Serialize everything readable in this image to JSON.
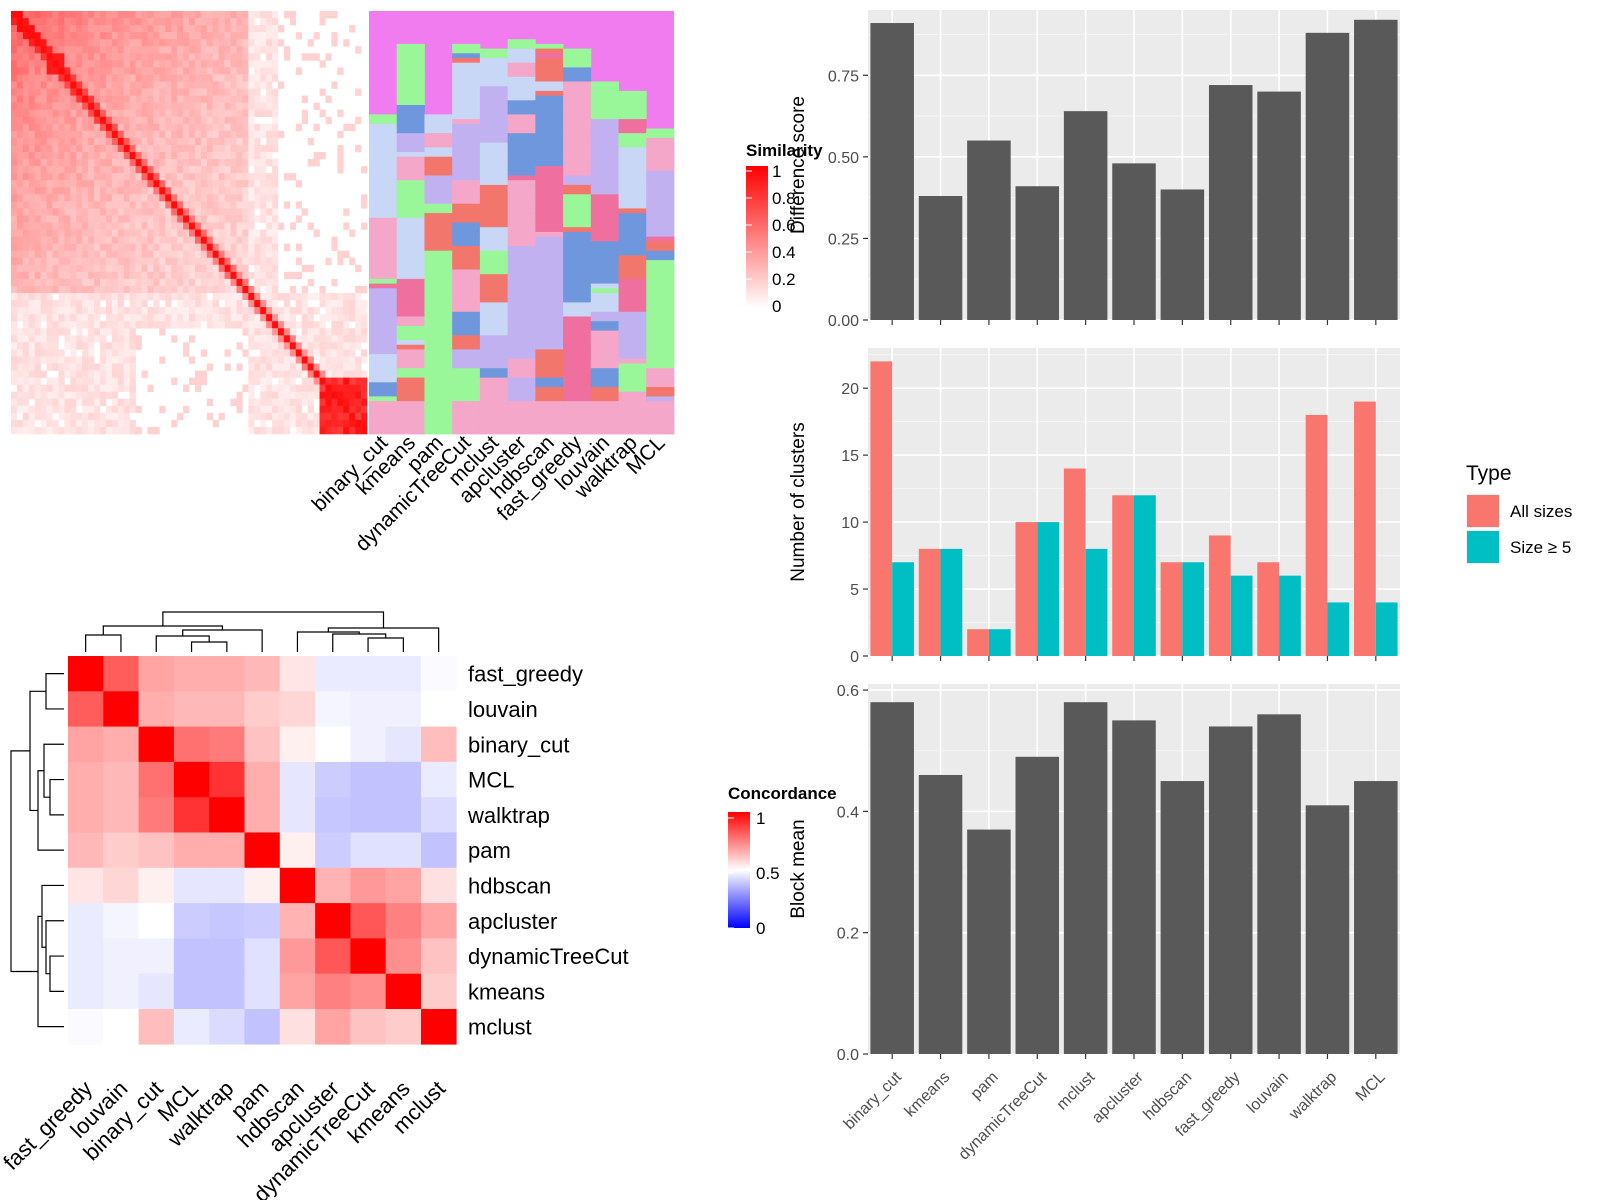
{
  "methods": [
    "binary_cut",
    "kmeans",
    "pam",
    "dynamicTreeCut",
    "mclust",
    "apcluster",
    "hdbscan",
    "fast_greedy",
    "louvain",
    "walktrap",
    "MCL"
  ],
  "colors": {
    "bar": "#595959",
    "panel_bg": "#ebebeb",
    "all_sizes": "#f8766d",
    "size_ge_5": "#00bfc4",
    "sim_high": "#ff0000",
    "conc_high": "#ff0000",
    "conc_mid": "#ffffff",
    "conc_low": "#0000ff",
    "cluster_palette": [
      "#f07cf0",
      "#99f799",
      "#6f97dd",
      "#f4a7c8",
      "#c2b1f0",
      "#ef6f9f",
      "#c7d7f5",
      "#f3766d"
    ]
  },
  "similarity_heatmap": {
    "legend_title": "Similarity",
    "legend_ticks": [
      "1",
      "0.8",
      "0.6",
      "0.4",
      "0.2",
      "0"
    ]
  },
  "membership_heatmap": {
    "column_labels": [
      "binary_cut",
      "kmeans",
      "pam",
      "dynamicTreeCut",
      "mclust",
      "apcluster",
      "hdbscan",
      "fast_greedy",
      "louvain",
      "walktrap",
      "MCL"
    ]
  },
  "concordance_heatmap": {
    "legend_title": "Concordance",
    "legend_ticks": [
      "1",
      "0.5",
      "0"
    ],
    "order": [
      "fast_greedy",
      "louvain",
      "binary_cut",
      "MCL",
      "walktrap",
      "pam",
      "hdbscan",
      "apcluster",
      "dynamicTreeCut",
      "kmeans",
      "mclust"
    ],
    "matrix": [
      [
        1.0,
        0.82,
        0.68,
        0.66,
        0.66,
        0.64,
        0.55,
        0.46,
        0.46,
        0.46,
        0.49
      ],
      [
        0.82,
        1.0,
        0.66,
        0.64,
        0.64,
        0.6,
        0.58,
        0.48,
        0.47,
        0.47,
        0.5
      ],
      [
        0.68,
        0.66,
        1.0,
        0.78,
        0.76,
        0.62,
        0.53,
        0.5,
        0.47,
        0.45,
        0.63
      ],
      [
        0.66,
        0.64,
        0.78,
        1.0,
        0.9,
        0.66,
        0.45,
        0.4,
        0.38,
        0.38,
        0.46
      ],
      [
        0.66,
        0.64,
        0.76,
        0.9,
        1.0,
        0.66,
        0.45,
        0.39,
        0.38,
        0.38,
        0.43
      ],
      [
        0.64,
        0.6,
        0.62,
        0.66,
        0.66,
        1.0,
        0.53,
        0.4,
        0.44,
        0.44,
        0.38
      ],
      [
        0.55,
        0.58,
        0.53,
        0.45,
        0.45,
        0.53,
        1.0,
        0.65,
        0.7,
        0.68,
        0.56
      ],
      [
        0.46,
        0.48,
        0.5,
        0.4,
        0.39,
        0.4,
        0.65,
        1.0,
        0.83,
        0.75,
        0.68
      ],
      [
        0.46,
        0.47,
        0.47,
        0.38,
        0.38,
        0.44,
        0.7,
        0.83,
        1.0,
        0.72,
        0.62
      ],
      [
        0.46,
        0.47,
        0.45,
        0.38,
        0.38,
        0.44,
        0.68,
        0.75,
        0.72,
        1.0,
        0.6
      ],
      [
        0.49,
        0.5,
        0.63,
        0.46,
        0.43,
        0.38,
        0.56,
        0.68,
        0.62,
        0.6,
        1.0
      ]
    ]
  },
  "chart_data": [
    {
      "type": "bar",
      "categories": [
        "binary_cut",
        "kmeans",
        "pam",
        "dynamicTreeCut",
        "mclust",
        "apcluster",
        "hdbscan",
        "fast_greedy",
        "louvain",
        "walktrap",
        "MCL"
      ],
      "values": [
        0.91,
        0.38,
        0.55,
        0.41,
        0.64,
        0.48,
        0.4,
        0.72,
        0.7,
        0.88,
        0.92
      ],
      "ylabel": "Difference score",
      "ylim": [
        0,
        0.95
      ],
      "yticks": [
        0.0,
        0.25,
        0.5,
        0.75
      ],
      "ytick_labels": [
        "0.00",
        "0.25",
        "0.50",
        "0.75"
      ],
      "grid": true
    },
    {
      "type": "bar",
      "categories": [
        "binary_cut",
        "kmeans",
        "pam",
        "dynamicTreeCut",
        "mclust",
        "apcluster",
        "hdbscan",
        "fast_greedy",
        "louvain",
        "walktrap",
        "MCL"
      ],
      "series": [
        {
          "name": "All sizes",
          "values": [
            22,
            8,
            2,
            10,
            14,
            12,
            7,
            9,
            7,
            18,
            19
          ]
        },
        {
          "name": "Size ≥ 5",
          "values": [
            7,
            8,
            2,
            10,
            8,
            12,
            7,
            6,
            6,
            4,
            4
          ]
        }
      ],
      "ylabel": "Number of clusters",
      "ylim": [
        0,
        23
      ],
      "yticks": [
        0,
        5,
        10,
        15,
        20
      ],
      "ytick_labels": [
        "0",
        "5",
        "10",
        "15",
        "20"
      ],
      "legend_title": "Type",
      "legend_position": "right",
      "grid": true
    },
    {
      "type": "bar",
      "categories": [
        "binary_cut",
        "kmeans",
        "pam",
        "dynamicTreeCut",
        "mclust",
        "apcluster",
        "hdbscan",
        "fast_greedy",
        "louvain",
        "walktrap",
        "MCL"
      ],
      "values": [
        0.58,
        0.46,
        0.37,
        0.49,
        0.58,
        0.55,
        0.45,
        0.54,
        0.56,
        0.41,
        0.45
      ],
      "ylabel": "Block mean",
      "ylim": [
        0,
        0.61
      ],
      "yticks": [
        0.0,
        0.2,
        0.4,
        0.6
      ],
      "ytick_labels": [
        "0.0",
        "0.2",
        "0.4",
        "0.6"
      ],
      "grid": true
    }
  ]
}
